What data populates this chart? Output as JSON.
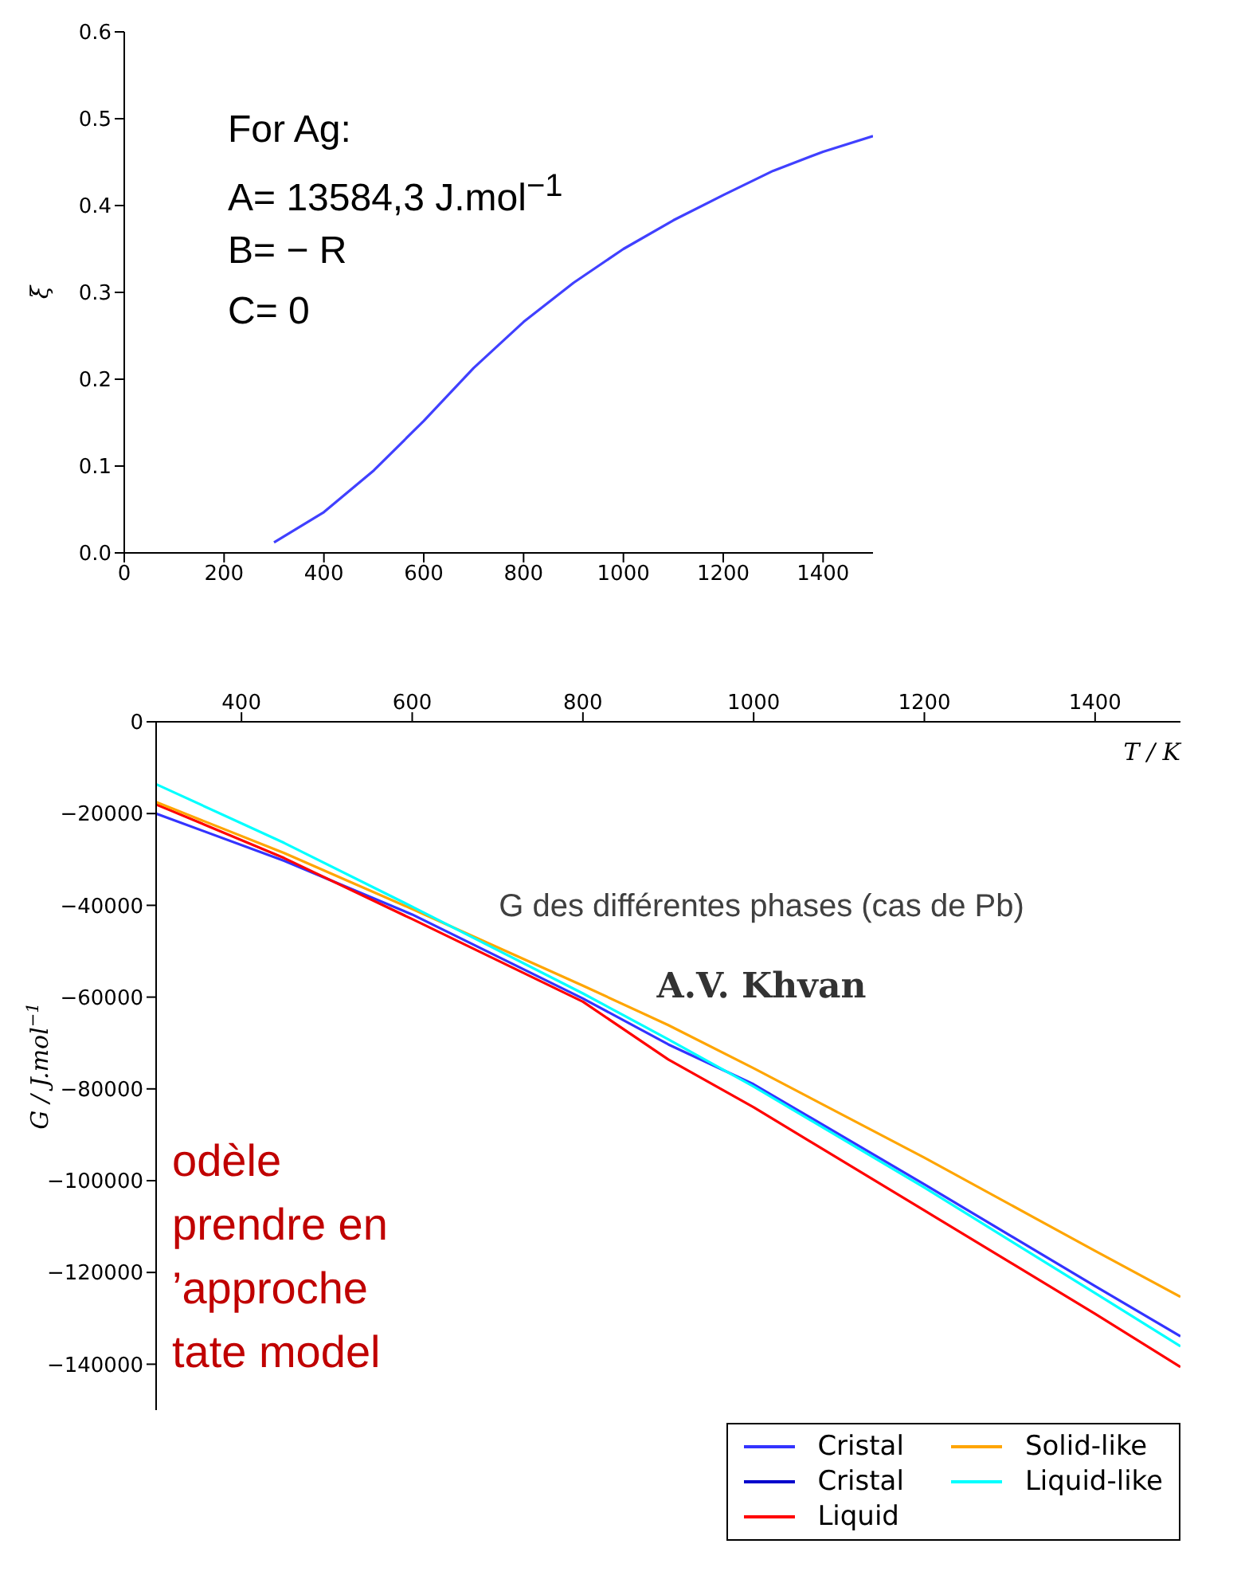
{
  "chart_data": [
    {
      "type": "line",
      "ylabel": "ξ",
      "marker": "none",
      "annotations": [
        "For Ag:",
        "A= 13584,3 J.mol$^{−1}$",
        "B= − R",
        "C= 0"
      ],
      "x": [
        300,
        400,
        500,
        600,
        700,
        800,
        900,
        1000,
        1100,
        1200,
        1300,
        1400,
        1500
      ],
      "series": [
        {
          "color": "#4040ff",
          "values": [
            0.012,
            0.047,
            0.095,
            0.152,
            0.213,
            0.266,
            0.311,
            0.35,
            0.383,
            0.412,
            0.44,
            0.462,
            0.48
          ]
        }
      ],
      "xlim": [
        0,
        1500
      ],
      "xticks": [
        0,
        200,
        400,
        600,
        800,
        1000,
        1200,
        1400
      ],
      "ylim": [
        0,
        0.6
      ],
      "yticks": [
        {
          "value": 0,
          "label": "0.0"
        },
        0.1,
        0.2,
        0.3,
        0.4,
        0.5,
        0.6
      ]
    },
    {
      "type": "line",
      "xlabel": "T / K",
      "ylabel": "G / J.mol$^{−1}$",
      "marker": "none",
      "legend": "bottom right",
      "annotations": [
        "G des différentes phases (cas de Pb)",
        "A.V. Khvan",
        "odèle",
        "prendre en",
        "’approche",
        "tate model"
      ],
      "x": [
        300,
        450,
        600,
        800,
        900,
        1000,
        1200,
        1400,
        1500
      ],
      "series": [
        {
          "name": "Cristal",
          "color": "#3333ff",
          "values": [
            -20000,
            -30300,
            -42000,
            -60300,
            -70300,
            -79000,
            -100800,
            -123000,
            -133900
          ]
        },
        {
          "name": "Cristal",
          "color": "#0000cc",
          "values": [
            null,
            null,
            null,
            null,
            null,
            null,
            null,
            null,
            null
          ]
        },
        {
          "name": "Liquid",
          "color": "#ff0000",
          "values": [
            -18000,
            -29700,
            -43000,
            -61000,
            -73600,
            -84000,
            -106500,
            -129000,
            -140600
          ]
        },
        {
          "name": "Solid-like",
          "color": "#ffa500",
          "values": [
            -17500,
            -28600,
            -40800,
            -57500,
            -66100,
            -75500,
            -95000,
            -115300,
            -125300
          ]
        },
        {
          "name": "Liquid-like",
          "color": "#00ffff",
          "values": [
            -13600,
            -26400,
            -40300,
            -59200,
            -69200,
            -79500,
            -101500,
            -124500,
            -136100
          ]
        }
      ],
      "xlim": [
        300,
        1500
      ],
      "xticks": [
        400,
        600,
        800,
        1000,
        1200,
        1400
      ],
      "ylim": [
        -150000,
        0
      ],
      "yticks": [
        0,
        {
          "value": -20000,
          "label": "−20000"
        },
        {
          "value": -40000,
          "label": "−40000"
        },
        {
          "value": -60000,
          "label": "−60000"
        },
        {
          "value": -80000,
          "label": "−80000"
        },
        {
          "value": -100000,
          "label": "−100000"
        },
        {
          "value": -120000,
          "label": "−120000"
        },
        {
          "value": -140000,
          "label": "−140000"
        }
      ]
    }
  ]
}
